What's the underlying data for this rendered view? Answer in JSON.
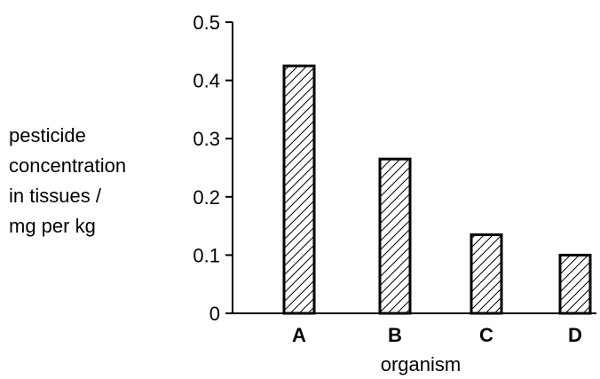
{
  "chart_data": {
    "type": "bar",
    "title": "",
    "categories": [
      "A",
      "B",
      "C",
      "D"
    ],
    "values": [
      0.425,
      0.265,
      0.135,
      0.1
    ],
    "xlabel": "organism",
    "ylabel_lines": [
      "pesticide",
      "concentration",
      "in tissues /",
      "mg per kg"
    ],
    "ylim": [
      0,
      0.5
    ],
    "yticks": [
      "0",
      "0.1",
      "0.2",
      "0.3",
      "0.4",
      "0.5"
    ],
    "grid": false,
    "bar_fill": "hatched",
    "colors": {
      "bar_stroke": "#000000",
      "hatch": "#000000",
      "background": "#ffffff"
    }
  }
}
